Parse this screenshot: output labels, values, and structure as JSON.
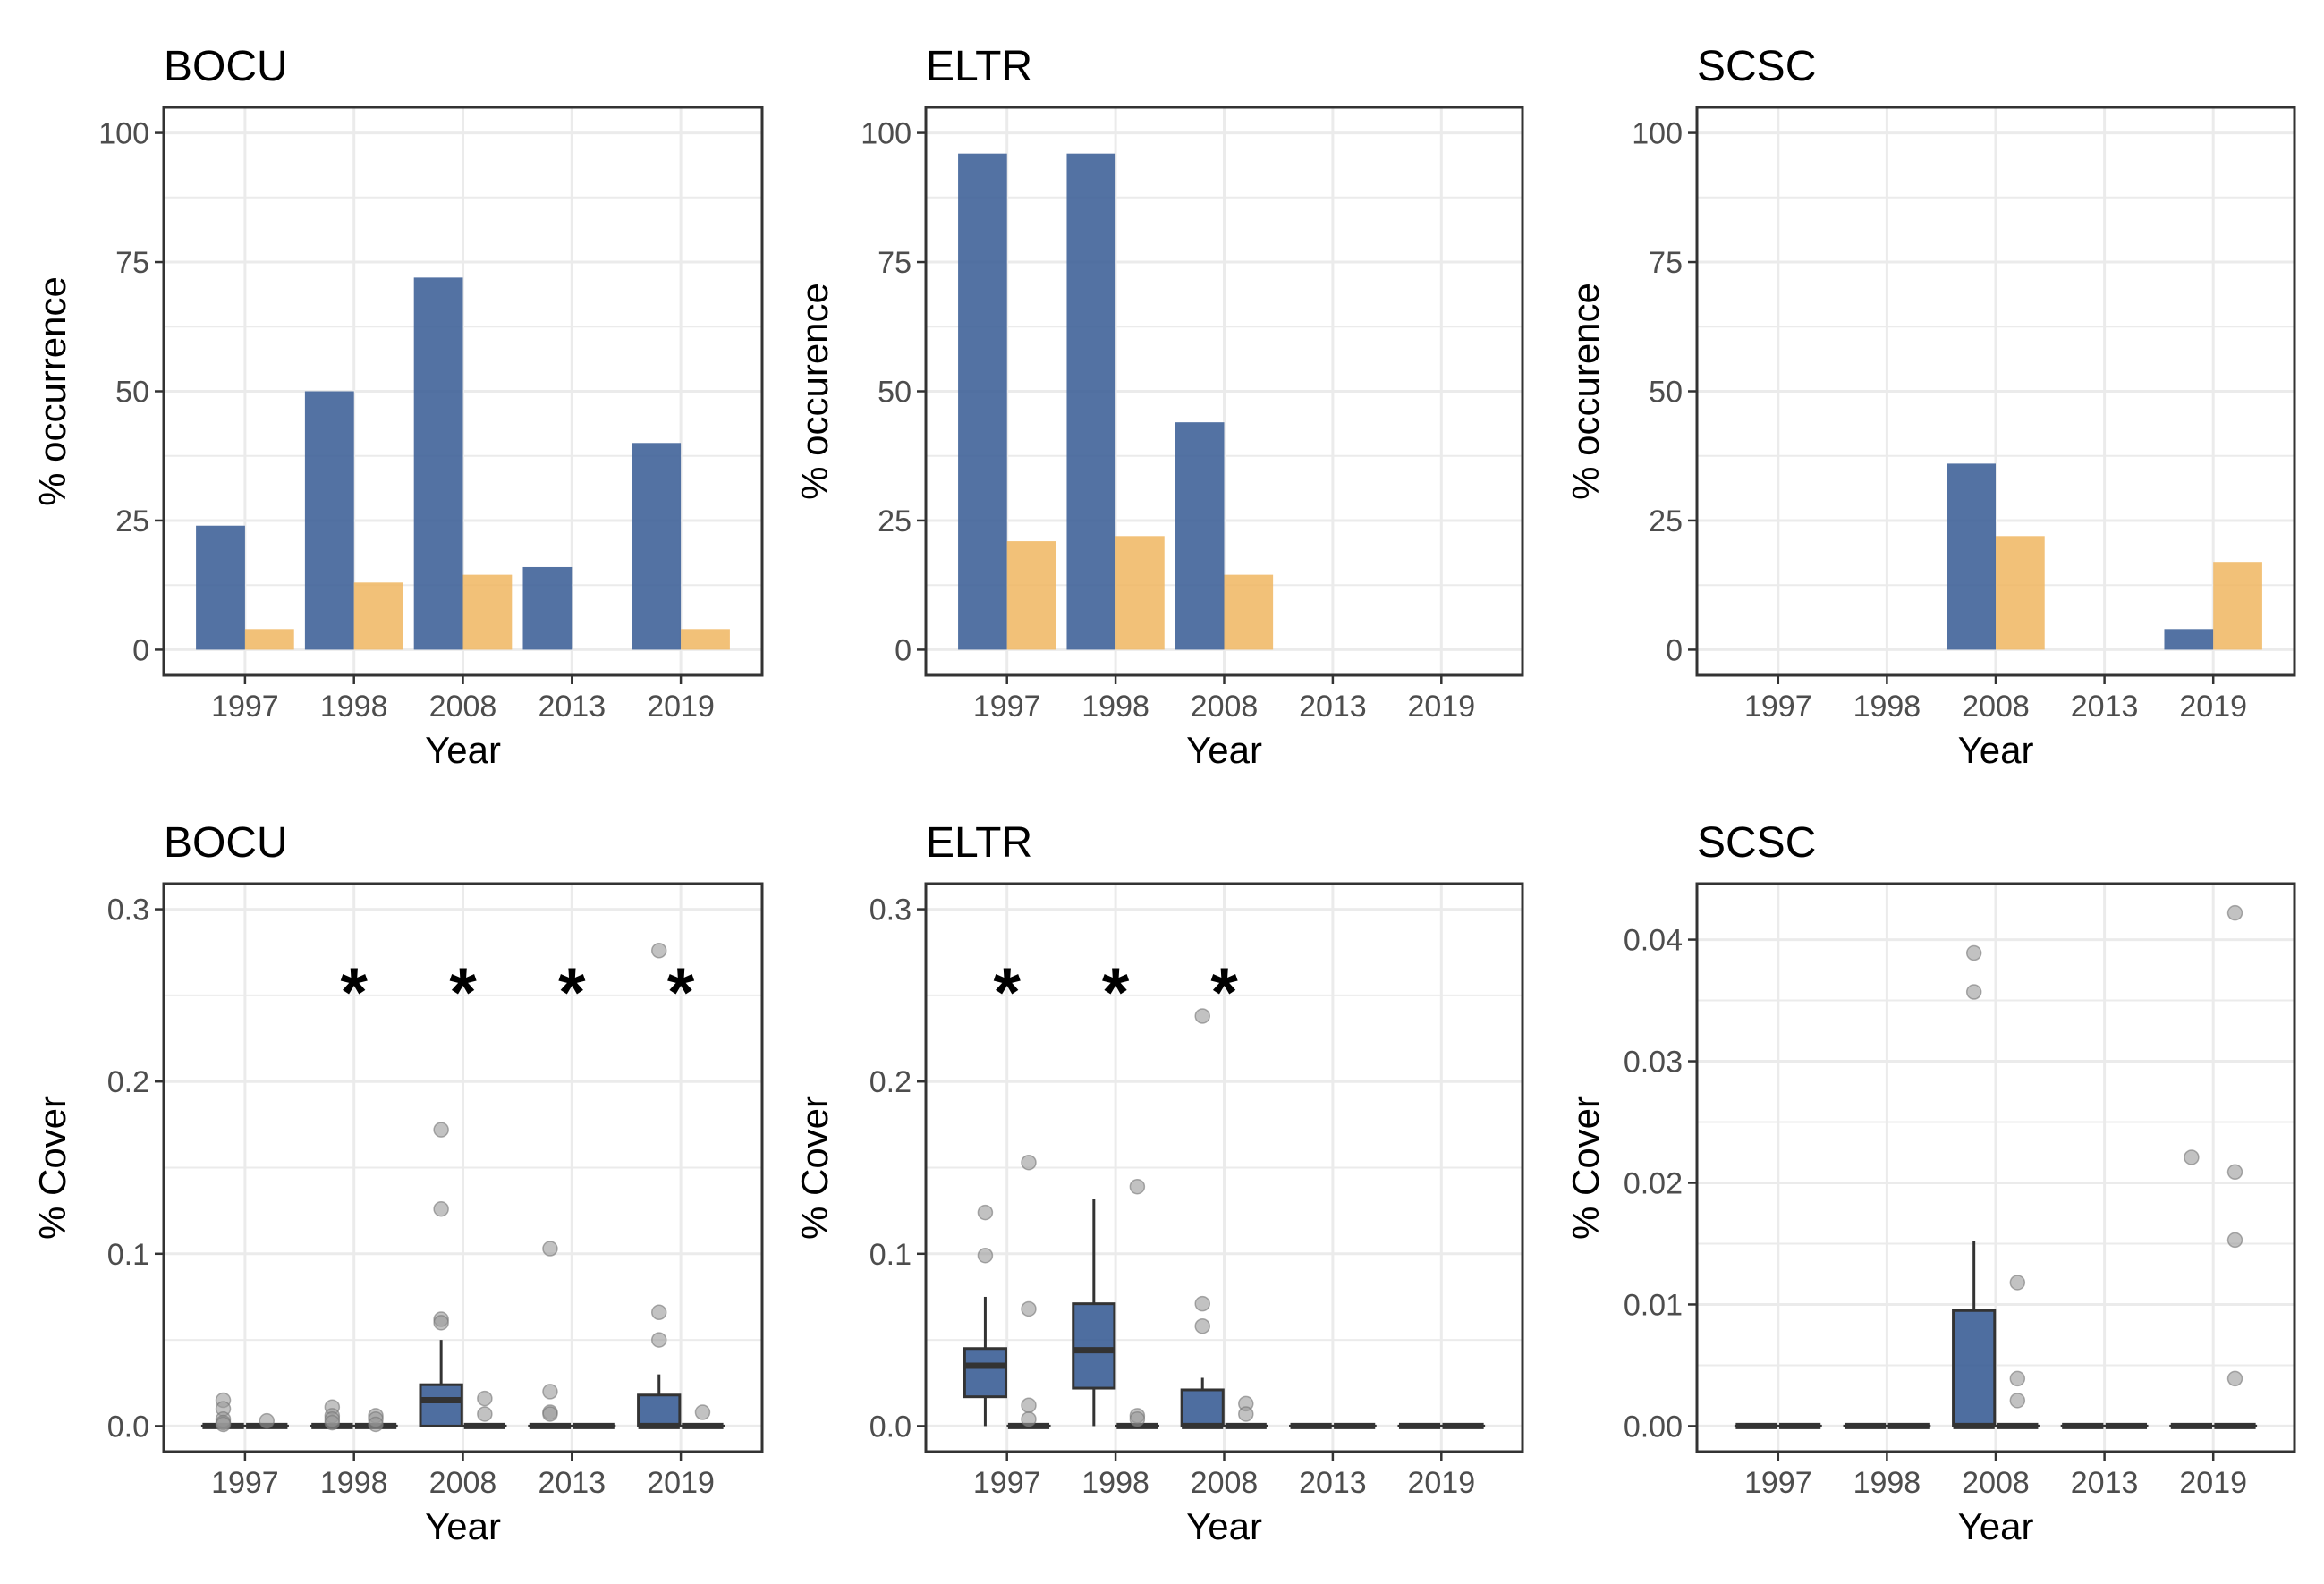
{
  "colors": {
    "treatment_a": "#3b5e96",
    "treatment_b": "#f0b660",
    "outlier": "#9a9a9a",
    "grid": "#ebebeb",
    "frame": "#333333"
  },
  "chart_data": [
    {
      "type": "bar",
      "title": "BOCU",
      "xlabel": "Year",
      "ylabel": "% occurrence",
      "categories": [
        "1997",
        "1998",
        "2008",
        "2013",
        "2019"
      ],
      "ylim": [
        0,
        100
      ],
      "yticks": [
        "0",
        "25",
        "50",
        "75",
        "100"
      ],
      "series": [
        {
          "color_key": "treatment_a",
          "values": [
            24,
            50,
            72,
            16,
            40
          ]
        },
        {
          "color_key": "treatment_b",
          "values": [
            4,
            13,
            14.5,
            0,
            4
          ]
        }
      ]
    },
    {
      "type": "bar",
      "title": "ELTR",
      "xlabel": "Year",
      "ylabel": "% occurence",
      "categories": [
        "1997",
        "1998",
        "2008",
        "2013",
        "2019"
      ],
      "ylim": [
        0,
        100
      ],
      "yticks": [
        "0",
        "25",
        "50",
        "75",
        "100"
      ],
      "series": [
        {
          "color_key": "treatment_a",
          "values": [
            96,
            96,
            44,
            0,
            0
          ]
        },
        {
          "color_key": "treatment_b",
          "values": [
            21,
            22,
            14.5,
            0,
            0
          ]
        }
      ]
    },
    {
      "type": "bar",
      "title": "SCSC",
      "xlabel": "Year",
      "ylabel": "% occurence",
      "categories": [
        "1997",
        "1998",
        "2008",
        "2013",
        "2019"
      ],
      "ylim": [
        0,
        100
      ],
      "yticks": [
        "0",
        "25",
        "50",
        "75",
        "100"
      ],
      "series": [
        {
          "color_key": "treatment_a",
          "values": [
            0,
            0,
            36,
            0,
            4
          ]
        },
        {
          "color_key": "treatment_b",
          "values": [
            0,
            0,
            22,
            0,
            17
          ]
        }
      ]
    },
    {
      "type": "box",
      "title": "BOCU",
      "xlabel": "Year",
      "ylabel": "% Cover",
      "categories": [
        "1997",
        "1998",
        "2008",
        "2013",
        "2019"
      ],
      "ylim": [
        0,
        0.3
      ],
      "yticks": [
        "0.0",
        "0.1",
        "0.2",
        "0.3"
      ],
      "significance_marks": [
        "",
        "*",
        "*",
        "*",
        "*"
      ],
      "boxes": [
        [
          {
            "q1": 0,
            "median": 0,
            "q3": 0,
            "whisker_low": 0,
            "whisker_high": 0,
            "outliers": [
              0.015,
              0.01,
              0.004,
              0.002,
              0.001
            ]
          },
          {
            "q1": 0,
            "median": 0,
            "q3": 0,
            "whisker_low": 0,
            "whisker_high": 0,
            "outliers": [
              0.003
            ]
          }
        ],
        [
          {
            "q1": 0,
            "median": 0,
            "q3": 0,
            "whisker_low": 0,
            "whisker_high": 0,
            "outliers": [
              0.011,
              0.006,
              0.004,
              0.002
            ]
          },
          {
            "q1": 0,
            "median": 0,
            "q3": 0,
            "whisker_low": 0,
            "whisker_high": 0,
            "outliers": [
              0.006,
              0.004,
              0.001
            ]
          }
        ],
        [
          {
            "q1": 0,
            "median": 0.015,
            "q3": 0.024,
            "whisker_low": 0,
            "whisker_high": 0.05,
            "outliers": [
              0.172,
              0.126,
              0.062,
              0.06
            ]
          },
          {
            "q1": 0,
            "median": 0,
            "q3": 0,
            "whisker_low": 0,
            "whisker_high": 0,
            "outliers": [
              0.016,
              0.007
            ]
          }
        ],
        [
          {
            "q1": 0,
            "median": 0,
            "q3": 0,
            "whisker_low": 0,
            "whisker_high": 0,
            "outliers": [
              0.103,
              0.02,
              0.008,
              0.007
            ]
          },
          {
            "q1": 0,
            "median": 0,
            "q3": 0,
            "whisker_low": 0,
            "whisker_high": 0,
            "outliers": []
          }
        ],
        [
          {
            "q1": 0,
            "median": 0,
            "q3": 0.018,
            "whisker_low": 0,
            "whisker_high": 0.03,
            "outliers": [
              0.276,
              0.066,
              0.05
            ]
          },
          {
            "q1": 0,
            "median": 0,
            "q3": 0,
            "whisker_low": 0,
            "whisker_high": 0,
            "outliers": [
              0.008
            ]
          }
        ]
      ]
    },
    {
      "type": "box",
      "title": "ELTR",
      "xlabel": "Year",
      "ylabel": "% Cover",
      "categories": [
        "1997",
        "1998",
        "2008",
        "2013",
        "2019"
      ],
      "ylim": [
        0,
        0.3
      ],
      "yticks": [
        "0.0",
        "0.1",
        "0.2",
        "0.3"
      ],
      "significance_marks": [
        "*",
        "*",
        "*",
        "",
        ""
      ],
      "boxes": [
        [
          {
            "q1": 0.017,
            "median": 0.035,
            "q3": 0.045,
            "whisker_low": 0,
            "whisker_high": 0.075,
            "outliers": [
              0.124,
              0.099
            ]
          },
          {
            "q1": 0,
            "median": 0,
            "q3": 0,
            "whisker_low": 0,
            "whisker_high": 0,
            "outliers": [
              0.153,
              0.068,
              0.012,
              0.004
            ]
          }
        ],
        [
          {
            "q1": 0.022,
            "median": 0.044,
            "q3": 0.071,
            "whisker_low": 0,
            "whisker_high": 0.132,
            "outliers": []
          },
          {
            "q1": 0,
            "median": 0,
            "q3": 0,
            "whisker_low": 0,
            "whisker_high": 0,
            "outliers": [
              0.139,
              0.006,
              0.004
            ]
          }
        ],
        [
          {
            "q1": 0,
            "median": 0,
            "q3": 0.021,
            "whisker_low": 0,
            "whisker_high": 0.028,
            "outliers": [
              0.238,
              0.071,
              0.058
            ]
          },
          {
            "q1": 0,
            "median": 0,
            "q3": 0,
            "whisker_low": 0,
            "whisker_high": 0,
            "outliers": [
              0.013,
              0.007
            ]
          }
        ],
        [
          {
            "q1": 0,
            "median": 0,
            "q3": 0,
            "whisker_low": 0,
            "whisker_high": 0,
            "outliers": []
          },
          {
            "q1": 0,
            "median": 0,
            "q3": 0,
            "whisker_low": 0,
            "whisker_high": 0,
            "outliers": []
          }
        ],
        [
          {
            "q1": 0,
            "median": 0,
            "q3": 0,
            "whisker_low": 0,
            "whisker_high": 0,
            "outliers": []
          },
          {
            "q1": 0,
            "median": 0,
            "q3": 0,
            "whisker_low": 0,
            "whisker_high": 0,
            "outliers": []
          }
        ]
      ]
    },
    {
      "type": "box",
      "title": "SCSC",
      "xlabel": "Year",
      "ylabel": "% Cover",
      "categories": [
        "1997",
        "1998",
        "2008",
        "2013",
        "2019"
      ],
      "ylim": [
        0,
        0.0425
      ],
      "yticks": [
        "0.00",
        "0.01",
        "0.02",
        "0.03",
        "0.04"
      ],
      "significance_marks": [
        "",
        "",
        "",
        "",
        ""
      ],
      "boxes": [
        [
          {
            "q1": 0,
            "median": 0,
            "q3": 0,
            "whisker_low": 0,
            "whisker_high": 0,
            "outliers": []
          },
          {
            "q1": 0,
            "median": 0,
            "q3": 0,
            "whisker_low": 0,
            "whisker_high": 0,
            "outliers": []
          }
        ],
        [
          {
            "q1": 0,
            "median": 0,
            "q3": 0,
            "whisker_low": 0,
            "whisker_high": 0,
            "outliers": []
          },
          {
            "q1": 0,
            "median": 0,
            "q3": 0,
            "whisker_low": 0,
            "whisker_high": 0,
            "outliers": []
          }
        ],
        [
          {
            "q1": 0,
            "median": 0,
            "q3": 0.0095,
            "whisker_low": 0,
            "whisker_high": 0.0152,
            "outliers": [
              0.0389,
              0.0357
            ]
          },
          {
            "q1": 0,
            "median": 0,
            "q3": 0,
            "whisker_low": 0,
            "whisker_high": 0,
            "outliers": [
              0.0118,
              0.0039,
              0.0021
            ]
          }
        ],
        [
          {
            "q1": 0,
            "median": 0,
            "q3": 0,
            "whisker_low": 0,
            "whisker_high": 0,
            "outliers": []
          },
          {
            "q1": 0,
            "median": 0,
            "q3": 0,
            "whisker_low": 0,
            "whisker_high": 0,
            "outliers": []
          }
        ],
        [
          {
            "q1": 0,
            "median": 0,
            "q3": 0,
            "whisker_low": 0,
            "whisker_high": 0,
            "outliers": [
              0.0221
            ]
          },
          {
            "q1": 0,
            "median": 0,
            "q3": 0,
            "whisker_low": 0,
            "whisker_high": 0,
            "outliers": [
              0.0422,
              0.0209,
              0.0153,
              0.0039
            ]
          }
        ]
      ]
    }
  ]
}
